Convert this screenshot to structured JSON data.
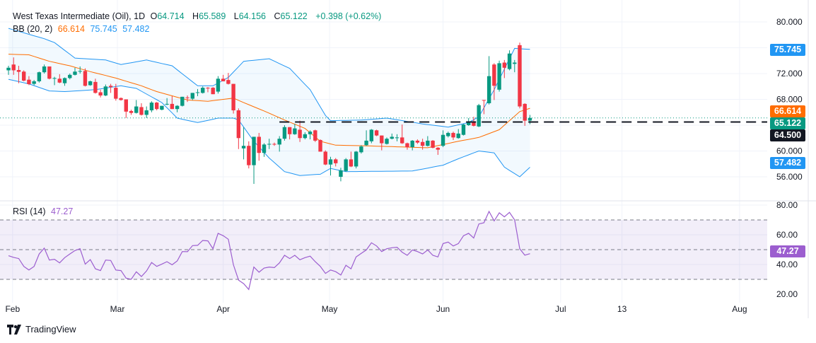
{
  "legend": {
    "symbol": "West Texas Intermediate (Oil), 1D",
    "open_label": "O",
    "open": "64.714",
    "high_label": "H",
    "high": "65.589",
    "low_label": "L",
    "low": "64.156",
    "close_label": "C",
    "close": "65.122",
    "change": "+0.398 (+0.62%)",
    "bb_label": "BB (20, 2)",
    "bb_basis": "66.614",
    "bb_upper": "75.745",
    "bb_lower": "57.482",
    "rsi_label": "RSI (14)",
    "rsi_value": "47.27"
  },
  "badges": {
    "bb_upper": "75.745",
    "bb_basis": "66.614",
    "last_price": "65.122",
    "level": "64.500",
    "bb_lower": "57.482",
    "rsi": "47.27"
  },
  "brand": "TradingView",
  "colors": {
    "up": "#089981",
    "down": "#f23645",
    "band": "#2196f3",
    "basis": "#ff6d00",
    "rsi": "#9c5ecf",
    "level": "#131722"
  },
  "chart_data": {
    "type": "candlestick",
    "title": "West Texas Intermediate (Oil), 1D",
    "price_axis": {
      "range": [
        56,
        80
      ],
      "tick_labels": [
        "80.000",
        "72.000",
        "68.000",
        "60.000",
        "56.000"
      ],
      "ticks": [
        80,
        72,
        68,
        60,
        56
      ],
      "grid": [
        80,
        76,
        72,
        68,
        64,
        60,
        56
      ]
    },
    "rsi_axis": {
      "range": [
        20,
        80
      ],
      "tick_labels": [
        "80.00",
        "60.00",
        "40.00",
        "20.00"
      ],
      "ticks": [
        80,
        60,
        40,
        20
      ],
      "bands": [
        70,
        50,
        30
      ]
    },
    "time_ticks": [
      {
        "label": "Feb",
        "index": 0.8
      },
      {
        "label": "Mar",
        "index": 21.3
      },
      {
        "label": "Apr",
        "index": 42
      },
      {
        "label": "May",
        "index": 62.8
      },
      {
        "label": "Jun",
        "index": 85
      },
      {
        "label": "Jul",
        "index": 108
      },
      {
        "label": "13",
        "index": 120
      },
      {
        "label": "Aug",
        "index": 143
      }
    ],
    "horizontal_level": {
      "value": 64.5,
      "from_index": 53
    },
    "last_price": 65.122,
    "ohlc": [
      [
        72.5,
        73.2,
        71.8,
        72.9
      ],
      [
        73.4,
        74.5,
        71.8,
        72.5
      ],
      [
        72.55,
        73.2,
        70.5,
        72.26
      ],
      [
        72.3,
        72.5,
        70.8,
        70.9
      ],
      [
        71.05,
        71.6,
        70.2,
        70.36
      ],
      [
        70.4,
        71.0,
        70.2,
        70.8
      ],
      [
        70.8,
        72.3,
        70.6,
        72.2
      ],
      [
        72.2,
        73.4,
        72.0,
        73.1
      ],
      [
        73.1,
        73.1,
        71.1,
        71.2
      ],
      [
        71.3,
        71.5,
        70.2,
        71.3
      ],
      [
        71.2,
        71.9,
        70.5,
        70.6
      ],
      [
        70.5,
        71.4,
        70.1,
        71.3
      ],
      [
        71.3,
        72.0,
        71.1,
        71.8
      ],
      [
        71.8,
        72.9,
        71.7,
        72.3
      ],
      [
        72.3,
        73.1,
        72.0,
        72.4
      ],
      [
        72.4,
        72.8,
        70.0,
        70.1
      ],
      [
        70.2,
        70.9,
        70.1,
        70.8
      ],
      [
        70.7,
        71.2,
        68.9,
        69.0
      ],
      [
        69.1,
        69.5,
        68.3,
        68.6
      ],
      [
        68.6,
        70.3,
        68.5,
        70.0
      ],
      [
        70.1,
        70.4,
        69.0,
        69.9
      ],
      [
        69.8,
        70.4,
        67.8,
        68.1
      ],
      [
        68.2,
        68.3,
        67.8,
        67.9
      ],
      [
        68.0,
        68.0,
        65.1,
        66.1
      ],
      [
        66.2,
        66.4,
        65.6,
        65.9
      ],
      [
        65.9,
        67.9,
        65.8,
        66.9
      ],
      [
        66.8,
        67.4,
        65.5,
        65.6
      ],
      [
        65.6,
        66.9,
        65.1,
        66.3
      ],
      [
        66.3,
        67.7,
        66.0,
        67.5
      ],
      [
        67.5,
        67.6,
        66.3,
        66.5
      ],
      [
        66.4,
        67.0,
        66.3,
        67.0
      ],
      [
        67.2,
        68.2,
        67.1,
        67.3
      ],
      [
        67.3,
        68.5,
        66.5,
        66.5
      ],
      [
        66.5,
        67.1,
        66.0,
        67.0
      ],
      [
        67.0,
        68.4,
        66.9,
        68.4
      ],
      [
        68.3,
        68.6,
        67.6,
        68.2
      ],
      [
        68.1,
        69.0,
        67.9,
        69.0
      ],
      [
        69.0,
        69.6,
        68.5,
        69.1
      ],
      [
        69.0,
        70.0,
        68.9,
        69.8
      ],
      [
        69.8,
        69.9,
        69.1,
        69.7
      ],
      [
        69.8,
        69.9,
        68.8,
        68.8
      ],
      [
        69.2,
        71.6,
        68.9,
        71.2
      ],
      [
        71.2,
        71.8,
        70.8,
        70.8
      ],
      [
        71.0,
        72.1,
        70.3,
        70.4
      ],
      [
        70.4,
        70.4,
        65.8,
        66.3
      ],
      [
        66.3,
        66.6,
        60.3,
        62.0
      ],
      [
        60.4,
        63.7,
        58.7,
        60.8
      ],
      [
        60.8,
        61.5,
        57.3,
        57.8
      ],
      [
        57.8,
        62.2,
        54.9,
        62.2
      ],
      [
        62.2,
        62.8,
        58.5,
        59.7
      ],
      [
        59.7,
        61.2,
        59.1,
        61.0
      ],
      [
        61.1,
        61.9,
        60.3,
        61.1
      ],
      [
        61.1,
        61.3,
        60.8,
        61.0
      ],
      [
        61.0,
        62.3,
        59.9,
        61.9
      ],
      [
        61.9,
        64.0,
        61.6,
        63.7
      ],
      [
        63.7,
        63.7,
        61.8,
        62.6
      ],
      [
        62.6,
        64.2,
        62.5,
        63.5
      ],
      [
        63.3,
        64.7,
        61.4,
        62.0
      ],
      [
        62.0,
        62.9,
        61.8,
        62.6
      ],
      [
        62.6,
        63.2,
        61.8,
        63.0
      ],
      [
        63.2,
        63.3,
        61.4,
        61.6
      ],
      [
        61.7,
        61.8,
        59.9,
        59.9
      ],
      [
        59.9,
        60.1,
        57.8,
        57.9
      ],
      [
        57.9,
        59.1,
        56.2,
        58.7
      ],
      [
        58.7,
        58.9,
        57.6,
        58.1
      ],
      [
        56.0,
        57.4,
        55.3,
        57.0
      ],
      [
        56.9,
        58.9,
        56.8,
        58.7
      ],
      [
        58.7,
        59.9,
        57.5,
        57.6
      ],
      [
        57.6,
        60.0,
        57.3,
        59.9
      ],
      [
        59.8,
        60.9,
        59.6,
        60.7
      ],
      [
        60.9,
        63.2,
        60.8,
        61.6
      ],
      [
        61.5,
        63.4,
        61.2,
        63.3
      ],
      [
        63.2,
        63.3,
        62.3,
        62.4
      ],
      [
        62.4,
        62.4,
        60.1,
        61.2
      ],
      [
        61.1,
        62.1,
        61.0,
        61.9
      ],
      [
        61.9,
        62.7,
        61.8,
        62.2
      ],
      [
        62.1,
        62.6,
        61.5,
        62.1
      ],
      [
        62.1,
        64.1,
        61.1,
        61.2
      ],
      [
        61.2,
        61.3,
        60.2,
        60.6
      ],
      [
        60.6,
        61.7,
        60.1,
        61.6
      ],
      [
        61.6,
        61.8,
        61.1,
        61.3
      ],
      [
        61.4,
        61.9,
        60.2,
        60.8
      ],
      [
        60.8,
        62.3,
        60.7,
        61.6
      ],
      [
        61.6,
        61.7,
        60.4,
        60.5
      ],
      [
        60.5,
        60.6,
        59.4,
        60.2
      ],
      [
        60.8,
        63.2,
        60.6,
        62.5
      ],
      [
        62.3,
        63.0,
        62.1,
        62.8
      ],
      [
        62.8,
        63.0,
        61.7,
        62.1
      ],
      [
        62.0,
        63.4,
        61.9,
        62.7
      ],
      [
        62.5,
        64.2,
        62.4,
        64.1
      ],
      [
        64.0,
        65.1,
        63.9,
        64.5
      ],
      [
        64.5,
        65.3,
        63.8,
        63.9
      ],
      [
        63.8,
        67.3,
        63.7,
        67.1
      ],
      [
        67.9,
        67.9,
        65.7,
        67.8
      ],
      [
        67.4,
        74.7,
        67.2,
        71.6
      ],
      [
        73.4,
        73.6,
        67.9,
        70.1
      ],
      [
        69.5,
        74.0,
        69.2,
        73.6
      ],
      [
        73.7,
        74.1,
        71.3,
        72.9
      ],
      [
        72.7,
        75.6,
        72.5,
        75.1
      ],
      [
        73.5,
        74.1,
        72.2,
        73.7
      ],
      [
        76.4,
        76.8,
        66.6,
        66.9
      ],
      [
        67.3,
        67.4,
        63.9,
        64.7
      ],
      [
        64.714,
        65.589,
        64.156,
        65.122
      ]
    ],
    "bb_upper": [
      [
        0,
        79.0
      ],
      [
        7,
        77.4
      ],
      [
        9,
        76.8
      ],
      [
        13,
        74.4
      ],
      [
        19,
        74.1
      ],
      [
        22,
        73.4
      ],
      [
        27,
        74.1
      ],
      [
        32,
        73.2
      ],
      [
        37,
        70.1
      ],
      [
        40,
        70.1
      ],
      [
        43,
        71.4
      ],
      [
        46,
        73.9
      ],
      [
        51,
        74.3
      ],
      [
        55,
        72.8
      ],
      [
        59,
        69.5
      ],
      [
        62,
        65.5
      ],
      [
        63,
        64.7
      ],
      [
        69,
        64.8
      ],
      [
        74,
        65.1
      ],
      [
        81,
        64.2
      ],
      [
        86,
        63.7
      ],
      [
        90,
        64.4
      ],
      [
        92,
        65.3
      ],
      [
        95,
        69.5
      ],
      [
        99,
        75.9
      ],
      [
        102,
        75.745
      ]
    ],
    "bb_basis": [
      [
        0,
        75.0
      ],
      [
        4,
        74.9
      ],
      [
        8,
        73.9
      ],
      [
        12,
        73.2
      ],
      [
        16,
        72.3
      ],
      [
        21,
        71.3
      ],
      [
        26,
        70.1
      ],
      [
        29,
        69.2
      ],
      [
        35,
        67.9
      ],
      [
        39,
        67.7
      ],
      [
        44,
        68.2
      ],
      [
        46,
        67.5
      ],
      [
        50,
        66.2
      ],
      [
        54,
        64.8
      ],
      [
        58,
        63.5
      ],
      [
        61,
        61.5
      ],
      [
        64,
        60.9
      ],
      [
        70,
        60.8
      ],
      [
        82,
        60.5
      ],
      [
        88,
        61.5
      ],
      [
        92,
        62.1
      ],
      [
        96,
        63.3
      ],
      [
        100,
        66.1
      ],
      [
        102,
        66.614
      ]
    ],
    "bb_lower": [
      [
        0,
        71.1
      ],
      [
        4,
        70.4
      ],
      [
        8,
        69.3
      ],
      [
        11,
        69.2
      ],
      [
        17,
        69.5
      ],
      [
        22,
        70.1
      ],
      [
        25,
        69.7
      ],
      [
        30,
        67.5
      ],
      [
        33,
        65.1
      ],
      [
        37,
        64.4
      ],
      [
        41,
        65.1
      ],
      [
        44,
        65.1
      ],
      [
        45,
        64.8
      ],
      [
        48,
        61.5
      ],
      [
        51,
        58.9
      ],
      [
        54,
        56.8
      ],
      [
        57,
        56.2
      ],
      [
        61,
        56.4
      ],
      [
        63,
        57.3
      ],
      [
        66,
        56.8
      ],
      [
        79,
        56.9
      ],
      [
        85,
        57.8
      ],
      [
        88,
        58.8
      ],
      [
        92,
        60.0
      ],
      [
        95,
        59.7
      ],
      [
        97,
        57.5
      ],
      [
        100,
        56.0
      ],
      [
        102,
        57.482
      ]
    ],
    "rsi": [
      45.9,
      44.8,
      44,
      38.7,
      36.3,
      38.7,
      47.1,
      51,
      43,
      43.5,
      41.1,
      44.6,
      47.1,
      49.4,
      50.6,
      40.3,
      43.3,
      37.1,
      35.9,
      43,
      42.7,
      36.3,
      35.9,
      30.8,
      30,
      35.1,
      31.9,
      35.6,
      41.4,
      38.7,
      40.3,
      41.9,
      39.8,
      42.4,
      48.7,
      48.6,
      52.7,
      52.9,
      56.2,
      55.9,
      50.6,
      61,
      59.4,
      57,
      39.8,
      29.5,
      27.1,
      23.2,
      38.3,
      34.8,
      37.6,
      38.3,
      37.9,
      41.1,
      46.2,
      44,
      46.2,
      43.2,
      44.6,
      45.6,
      41.9,
      38.7,
      34,
      36.3,
      35.2,
      32.9,
      39.5,
      37.1,
      45.1,
      47.5,
      49.8,
      54.6,
      52.5,
      48.7,
      50.6,
      51.3,
      51.6,
      48.3,
      46.2,
      49.8,
      48.7,
      47.1,
      49.8,
      46.2,
      45.1,
      54.1,
      55.1,
      52.5,
      54.1,
      59.4,
      61,
      57.8,
      67.3,
      68.1,
      75.7,
      69.4,
      74.8,
      72.1,
      75.1,
      70,
      50.6,
      46.3,
      47.27
    ]
  }
}
